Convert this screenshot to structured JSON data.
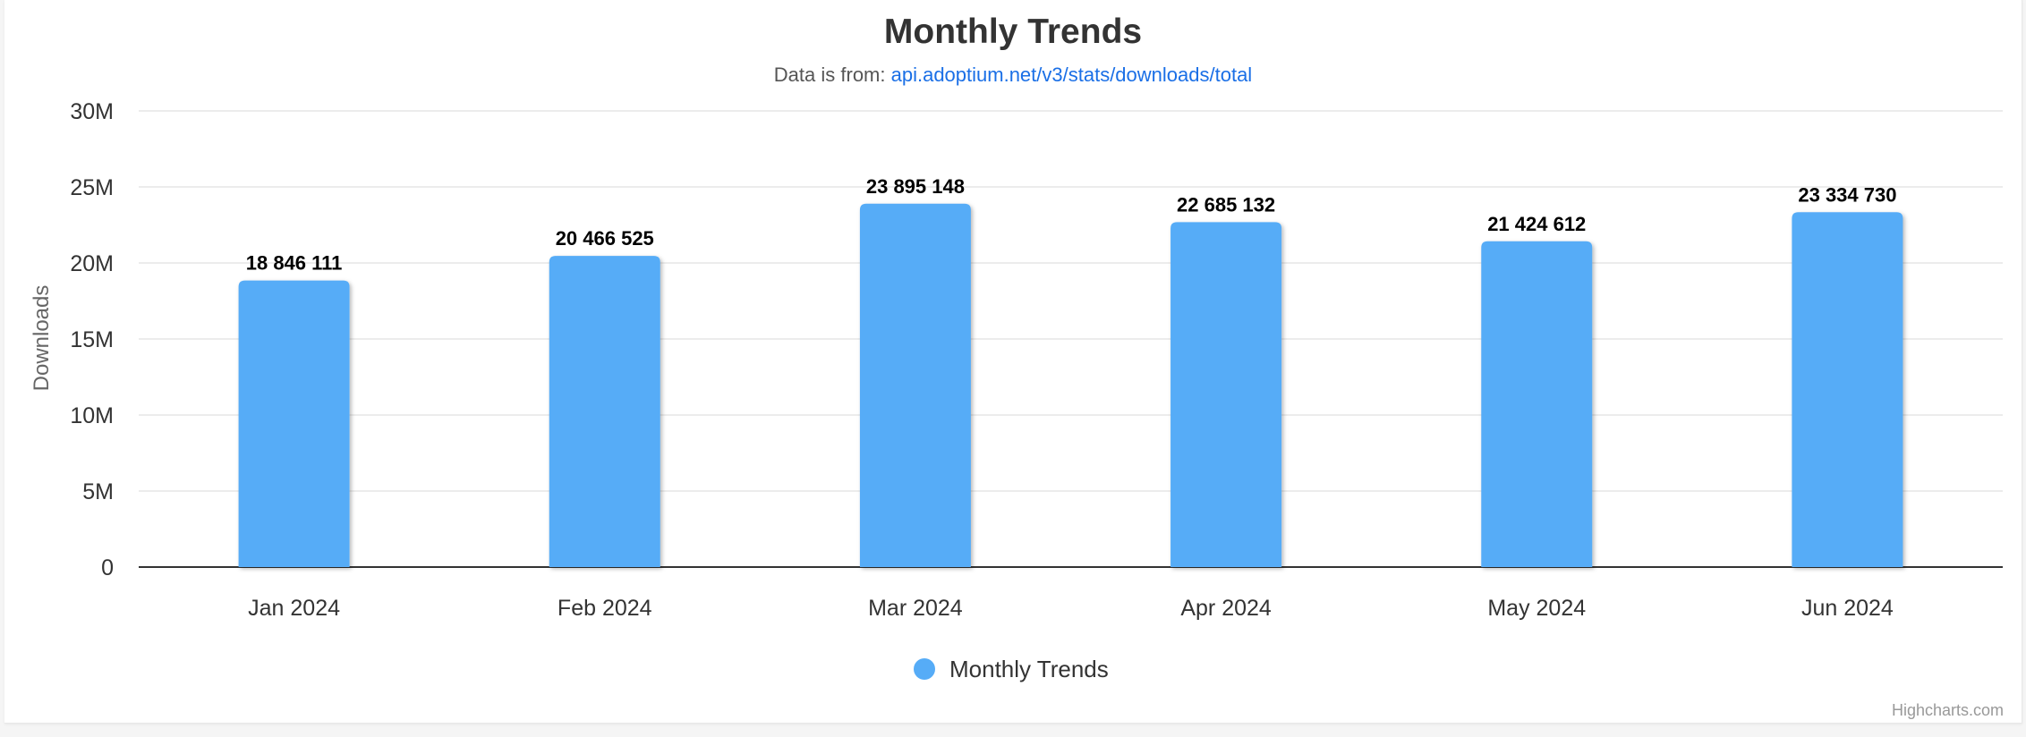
{
  "chart_data": {
    "type": "bar",
    "title": "Monthly Trends",
    "subtitle_prefix": "Data is from: ",
    "subtitle_link": "api.adoptium.net/v3/stats/downloads/total",
    "ylabel": "Downloads",
    "xlabel": "",
    "ylim": [
      0,
      30000000
    ],
    "yticks": [
      0,
      5000000,
      10000000,
      15000000,
      20000000,
      25000000,
      30000000
    ],
    "ytick_labels": [
      "0",
      "5M",
      "10M",
      "15M",
      "20M",
      "25M",
      "30M"
    ],
    "categories": [
      "Jan 2024",
      "Feb 2024",
      "Mar 2024",
      "Apr 2024",
      "May 2024",
      "Jun 2024"
    ],
    "series": [
      {
        "name": "Monthly Trends",
        "color": "#56acf7",
        "values": [
          18846111,
          20466525,
          23895148,
          22685132,
          21424612,
          23334730
        ],
        "data_labels": [
          "18 846 111",
          "20 466 525",
          "23 895 148",
          "22 685 132",
          "21 424 612",
          "23 334 730"
        ]
      }
    ],
    "grid": true,
    "legend_position": "bottom-center"
  },
  "credits": "Highcharts.com",
  "colors": {
    "bar": "#56acf7",
    "link": "#1a6fe6",
    "grid": "#e6e6e6",
    "axis": "#333333"
  }
}
